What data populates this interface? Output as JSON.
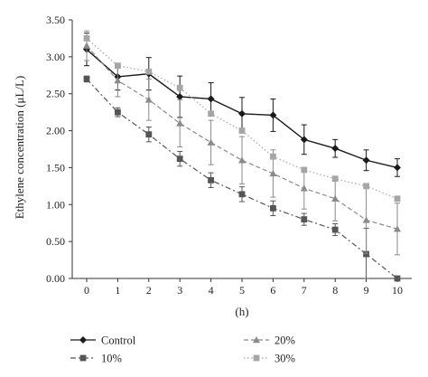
{
  "chart_data": {
    "type": "line",
    "title": "",
    "xlabel": "(h)",
    "ylabel": "Ethylene concentration (μL/L)",
    "x": [
      0,
      1,
      2,
      3,
      4,
      5,
      6,
      7,
      8,
      9,
      10
    ],
    "x_tick_labels": [
      "0",
      "1",
      "2",
      "3",
      "4",
      "5",
      "6",
      "7",
      "8",
      "9",
      "10"
    ],
    "xlim": [
      0,
      10
    ],
    "ylim": [
      0,
      3.5
    ],
    "y_ticks": [
      0,
      0.5,
      1.0,
      1.5,
      2.0,
      2.5,
      3.0,
      3.5
    ],
    "y_tick_labels": [
      "0.00",
      "0.50",
      "1.00",
      "1.50",
      "2.00",
      "2.50",
      "3.00",
      "3.50"
    ],
    "grid": false,
    "legend_position": "bottom",
    "series": [
      {
        "name": "Control",
        "color": "#1a1a1a",
        "marker": "diamond",
        "line_style": "solid",
        "values": [
          3.1,
          2.73,
          2.77,
          2.46,
          2.43,
          2.23,
          2.21,
          1.88,
          1.76,
          1.6,
          1.5
        ],
        "errors": [
          0.22,
          0.18,
          0.22,
          0.28,
          0.22,
          0.22,
          0.22,
          0.2,
          0.12,
          0.14,
          0.12
        ]
      },
      {
        "name": "10%",
        "color": "#555555",
        "marker": "square",
        "line_style": "dash-dot",
        "values": [
          2.7,
          2.25,
          1.95,
          1.62,
          1.33,
          1.14,
          0.95,
          0.8,
          0.66,
          0.33,
          0.0
        ],
        "errors": [
          0.04,
          0.06,
          0.1,
          0.1,
          0.1,
          0.1,
          0.1,
          0.08,
          0.08,
          0.35,
          0.0
        ]
      },
      {
        "name": "20%",
        "color": "#8a8a8a",
        "marker": "triangle",
        "line_style": "dashed",
        "values": [
          3.15,
          2.68,
          2.42,
          2.1,
          1.84,
          1.6,
          1.42,
          1.22,
          1.08,
          0.79,
          0.67
        ],
        "errors": [
          0.2,
          0.22,
          0.28,
          0.32,
          0.3,
          0.32,
          0.32,
          0.28,
          0.3,
          0.45,
          0.35
        ]
      },
      {
        "name": "30%",
        "color": "#a6a6a6",
        "marker": "square",
        "line_style": "dotted",
        "values": [
          3.25,
          2.88,
          2.8,
          2.58,
          2.23,
          2.0,
          1.65,
          1.47,
          1.35,
          1.25,
          1.08
        ]
      }
    ]
  }
}
